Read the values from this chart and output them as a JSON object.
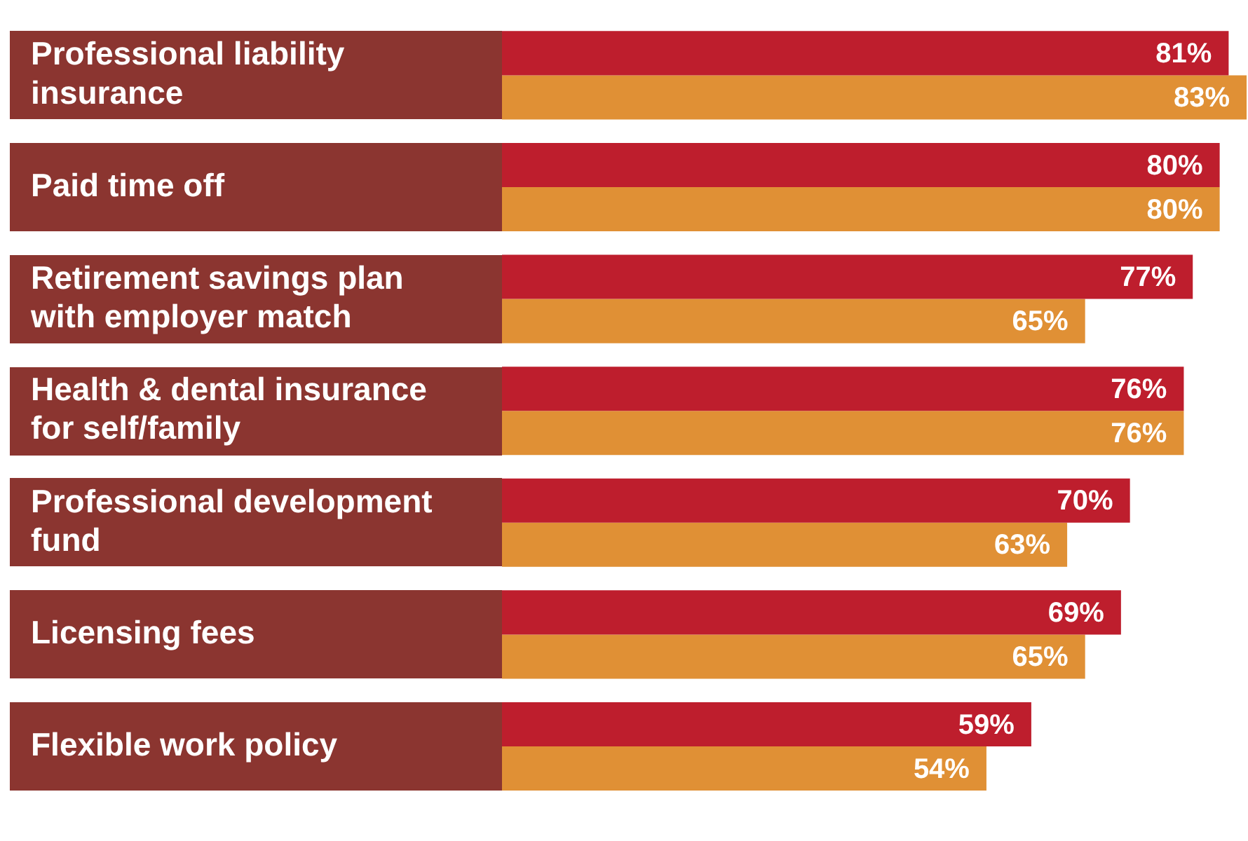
{
  "chart_data": {
    "type": "bar",
    "orientation": "horizontal",
    "legend": false,
    "categories": [
      "Professional liability insurance",
      "Paid time off",
      "Retirement savings plan with employer match",
      "Health & dental insurance for self/family",
      "Professional development fund",
      "Licensing fees",
      "Flexible work policy"
    ],
    "series": [
      {
        "color": "#be1e2d",
        "values": [
          81,
          80,
          77,
          76,
          70,
          69,
          59
        ],
        "value_labels": [
          "81%",
          "80%",
          "77%",
          "76%",
          "70%",
          "69%",
          "59%"
        ]
      },
      {
        "color": "#e09035",
        "values": [
          83,
          80,
          65,
          76,
          63,
          65,
          54
        ],
        "value_labels": [
          "83%",
          "80%",
          "65%",
          "76%",
          "63%",
          "65%",
          "54%"
        ]
      }
    ]
  }
}
